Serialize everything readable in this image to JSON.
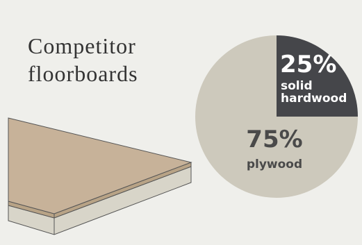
{
  "chart_data": {
    "type": "pie",
    "title": "Competitor floorboards",
    "categories": [
      "solid hardwood",
      "plywood"
    ],
    "values": [
      25,
      75
    ],
    "value_labels": [
      "25%",
      "75%"
    ],
    "colors": [
      "#45464a",
      "#cdc9bc"
    ]
  }
}
